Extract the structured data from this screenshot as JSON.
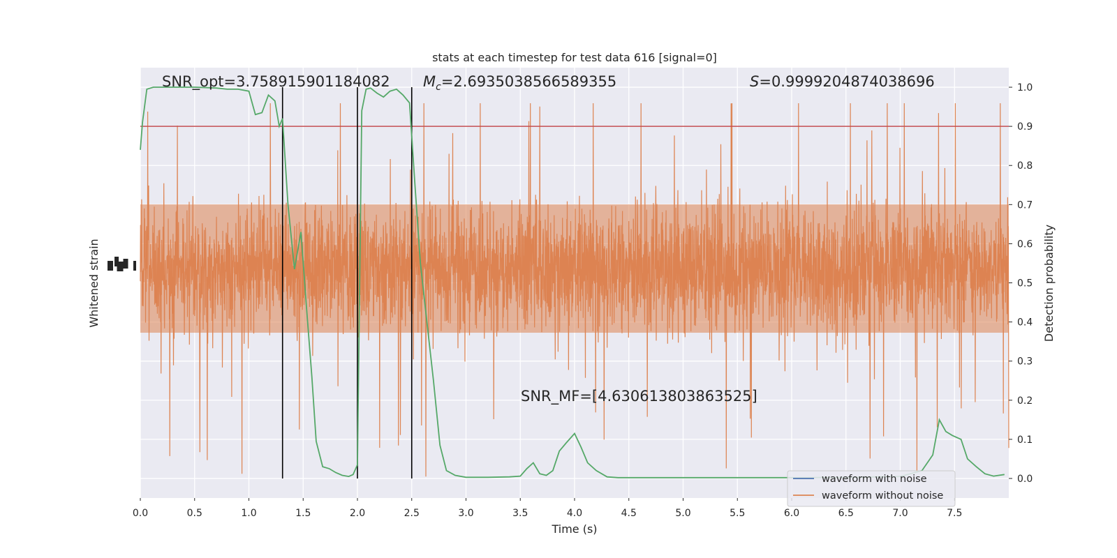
{
  "chart_data": {
    "type": "line",
    "title": "stats at each timestep for test data 616 [signal=0]",
    "xlabel": "Time (s)",
    "ylabel_left": "Whitened strain",
    "ylabel_right": "Detection probability",
    "xlim": [
      0.0,
      8.0
    ],
    "ylim_right": [
      -0.05,
      1.05
    ],
    "xticks": [
      "0.0",
      "0.5",
      "1.0",
      "1.5",
      "2.0",
      "2.5",
      "3.0",
      "3.5",
      "4.0",
      "4.5",
      "5.0",
      "5.5",
      "6.0",
      "6.5",
      "7.0",
      "7.5"
    ],
    "yticks_right": [
      "0.0",
      "0.1",
      "0.2",
      "0.3",
      "0.4",
      "0.5",
      "0.6",
      "0.7",
      "0.8",
      "0.9",
      "1.0"
    ],
    "grid": true,
    "legend": {
      "placement": "lower-right",
      "entries": [
        {
          "label": "waveform with noise",
          "color": "#4c72b0"
        },
        {
          "label": "waveform without noise",
          "color": "#dd8452"
        }
      ]
    },
    "annotations": {
      "snr_opt": "SNR_opt=3.758915901184082",
      "mc_prefix": "M",
      "mc_sub": "c",
      "mc_value": "=2.6935038566589355",
      "s_prefix": "S",
      "s_value": "=0.9999204874038696",
      "snr_mf": "SNR_MF=[4.630613803863525]"
    },
    "threshold": {
      "value": 0.9,
      "color": "#c44e52"
    },
    "vertical_lines": [
      1.31,
      2.0,
      2.5
    ],
    "strain_series": {
      "name": "waveform without noise",
      "color": "#dd8452",
      "duration_s": 8.0
    },
    "probability_series": {
      "color": "#55a868",
      "x": [
        0.0,
        0.02,
        0.06,
        0.12,
        0.2,
        0.3,
        0.5,
        0.7,
        0.8,
        0.9,
        1.0,
        1.06,
        1.12,
        1.18,
        1.24,
        1.28,
        1.31,
        1.36,
        1.42,
        1.48,
        1.53,
        1.58,
        1.62,
        1.68,
        1.74,
        1.8,
        1.86,
        1.92,
        1.96,
        2.0,
        2.04,
        2.08,
        2.12,
        2.18,
        2.24,
        2.3,
        2.36,
        2.42,
        2.48,
        2.53,
        2.58,
        2.64,
        2.7,
        2.76,
        2.82,
        2.9,
        3.0,
        3.2,
        3.4,
        3.5,
        3.56,
        3.62,
        3.68,
        3.74,
        3.8,
        3.86,
        3.92,
        4.0,
        4.06,
        4.12,
        4.2,
        4.3,
        4.4,
        4.6,
        4.8,
        5.0,
        5.4,
        6.0,
        6.6,
        7.0,
        7.2,
        7.3,
        7.36,
        7.42,
        7.48,
        7.56,
        7.62,
        7.7,
        7.78,
        7.86,
        7.96
      ],
      "y": [
        0.84,
        0.91,
        0.995,
        1.0,
        1.0,
        1.0,
        1.0,
        0.998,
        0.995,
        0.995,
        0.99,
        0.93,
        0.935,
        0.98,
        0.965,
        0.9,
        0.92,
        0.7,
        0.535,
        0.63,
        0.44,
        0.26,
        0.095,
        0.03,
        0.025,
        0.015,
        0.008,
        0.005,
        0.01,
        0.035,
        0.94,
        0.995,
        0.998,
        0.985,
        0.975,
        0.99,
        0.995,
        0.98,
        0.96,
        0.75,
        0.55,
        0.4,
        0.25,
        0.085,
        0.02,
        0.008,
        0.003,
        0.003,
        0.004,
        0.006,
        0.025,
        0.04,
        0.012,
        0.008,
        0.02,
        0.07,
        0.09,
        0.115,
        0.08,
        0.04,
        0.02,
        0.004,
        0.002,
        0.002,
        0.002,
        0.002,
        0.002,
        0.002,
        0.003,
        0.005,
        0.02,
        0.06,
        0.15,
        0.12,
        0.11,
        0.1,
        0.05,
        0.03,
        0.012,
        0.006,
        0.01
      ]
    }
  }
}
